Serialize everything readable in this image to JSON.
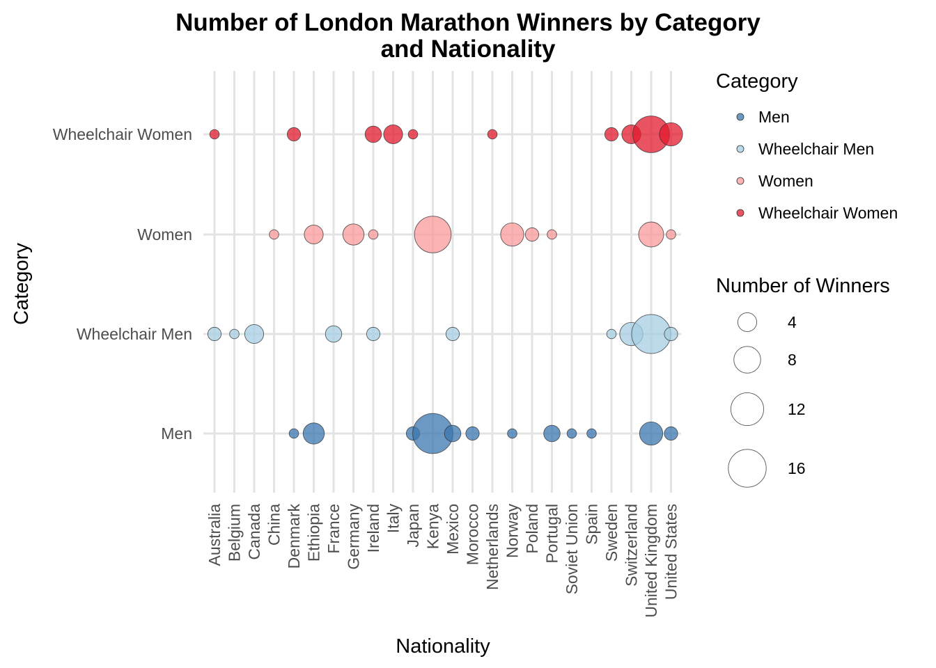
{
  "chart_data": {
    "type": "scatter",
    "title": "Number of London Marathon Winners by Category",
    "title_line2": "and Nationality",
    "xlabel": "Nationality",
    "ylabel": "Category",
    "x_categories": [
      "Australia",
      "Belgium",
      "Canada",
      "China",
      "Denmark",
      "Ethiopia",
      "France",
      "Germany",
      "Ireland",
      "Italy",
      "Japan",
      "Kenya",
      "Mexico",
      "Morocco",
      "Netherlands",
      "Norway",
      "Poland",
      "Portugal",
      "Soviet Union",
      "Spain",
      "Sweden",
      "Switzerland",
      "United Kingdom",
      "United States"
    ],
    "y_categories": [
      "Men",
      "Wheelchair Men",
      "Women",
      "Wheelchair Women"
    ],
    "series": [
      {
        "name": "Men",
        "color": "#3B77AF",
        "points": [
          {
            "x": "Denmark",
            "n": 1
          },
          {
            "x": "Ethiopia",
            "n": 5
          },
          {
            "x": "Japan",
            "n": 2
          },
          {
            "x": "Kenya",
            "n": 18
          },
          {
            "x": "Mexico",
            "n": 3
          },
          {
            "x": "Morocco",
            "n": 2
          },
          {
            "x": "Norway",
            "n": 1
          },
          {
            "x": "Portugal",
            "n": 3
          },
          {
            "x": "Soviet Union",
            "n": 1
          },
          {
            "x": "Spain",
            "n": 1
          },
          {
            "x": "United Kingdom",
            "n": 6
          },
          {
            "x": "United States",
            "n": 2
          }
        ]
      },
      {
        "name": "Wheelchair Men",
        "color": "#A6CEE3",
        "points": [
          {
            "x": "Australia",
            "n": 2
          },
          {
            "x": "Belgium",
            "n": 1
          },
          {
            "x": "Canada",
            "n": 4
          },
          {
            "x": "France",
            "n": 3
          },
          {
            "x": "Ireland",
            "n": 2
          },
          {
            "x": "Mexico",
            "n": 2
          },
          {
            "x": "Sweden",
            "n": 1
          },
          {
            "x": "Switzerland",
            "n": 6
          },
          {
            "x": "United Kingdom",
            "n": 17
          },
          {
            "x": "United States",
            "n": 2
          }
        ]
      },
      {
        "name": "Women",
        "color": "#FB9A99",
        "points": [
          {
            "x": "China",
            "n": 1
          },
          {
            "x": "Ethiopia",
            "n": 4
          },
          {
            "x": "Germany",
            "n": 5
          },
          {
            "x": "Ireland",
            "n": 1
          },
          {
            "x": "Kenya",
            "n": 15
          },
          {
            "x": "Norway",
            "n": 6
          },
          {
            "x": "Poland",
            "n": 2
          },
          {
            "x": "Portugal",
            "n": 1
          },
          {
            "x": "United Kingdom",
            "n": 7
          },
          {
            "x": "United States",
            "n": 1
          }
        ]
      },
      {
        "name": "Wheelchair Women",
        "color": "#E31A2C",
        "points": [
          {
            "x": "Australia",
            "n": 1
          },
          {
            "x": "Denmark",
            "n": 2
          },
          {
            "x": "Ireland",
            "n": 3
          },
          {
            "x": "Italy",
            "n": 4
          },
          {
            "x": "Japan",
            "n": 1
          },
          {
            "x": "Netherlands",
            "n": 1
          },
          {
            "x": "Sweden",
            "n": 2
          },
          {
            "x": "Switzerland",
            "n": 4
          },
          {
            "x": "United Kingdom",
            "n": 15
          },
          {
            "x": "United States",
            "n": 6
          }
        ]
      }
    ],
    "legend_color_title": "Category",
    "legend_size_title": "Number of Winners",
    "legend_size_breaks": [
      4,
      8,
      12,
      16
    ],
    "point_alpha": 0.75,
    "grid": true
  }
}
